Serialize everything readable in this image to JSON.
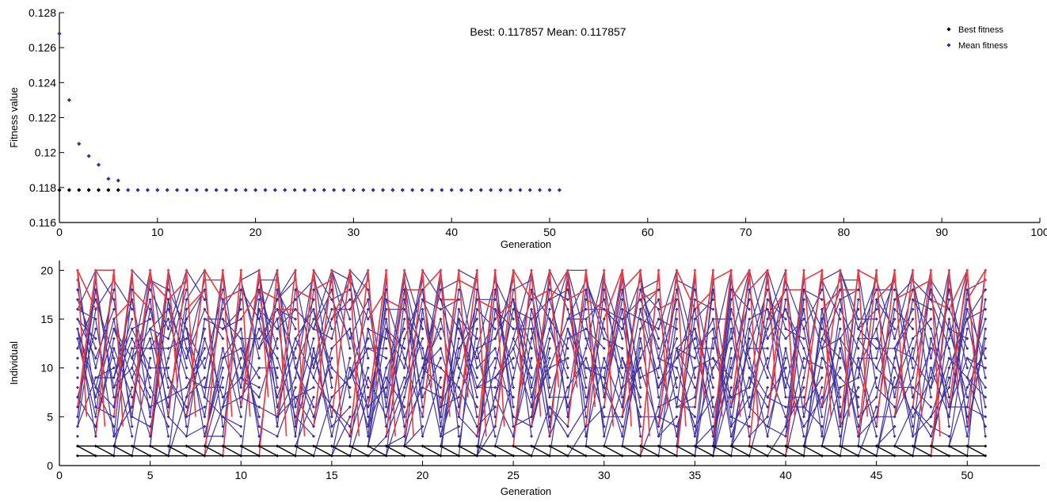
{
  "chart_data": [
    {
      "type": "scatter",
      "title": "Best: 0.117857 Mean: 0.117857",
      "xlabel": "Generation",
      "ylabel": "Fitness value",
      "xlim": [
        0,
        100
      ],
      "ylim": [
        0.116,
        0.128
      ],
      "xticks": [
        0,
        10,
        20,
        30,
        40,
        50,
        60,
        70,
        80,
        90,
        100
      ],
      "yticks": [
        0.116,
        0.118,
        0.12,
        0.122,
        0.124,
        0.126,
        0.128
      ],
      "ytick_labels": [
        "0.116",
        "0.118",
        "0.12",
        "0.122",
        "0.124",
        "0.126",
        "0.128"
      ],
      "legend_position": "top-right",
      "grid": false,
      "series": [
        {
          "name": "Best fitness",
          "color": "#000000",
          "x": [
            0,
            1,
            2,
            3,
            4,
            5,
            6
          ],
          "y": [
            0.117857,
            0.117857,
            0.117857,
            0.117857,
            0.117857,
            0.117857,
            0.117857
          ]
        },
        {
          "name": "Mean fitness",
          "color": "#3a2a9a",
          "x": [
            0,
            1,
            2,
            3,
            4,
            5,
            6,
            7,
            8,
            9,
            10,
            11,
            12,
            13,
            14,
            15,
            16,
            17,
            18,
            19,
            20,
            21,
            22,
            23,
            24,
            25,
            26,
            27,
            28,
            29,
            30,
            31,
            32,
            33,
            34,
            35,
            36,
            37,
            38,
            39,
            40,
            41,
            42,
            43,
            44,
            45,
            46,
            47,
            48,
            49,
            50,
            51
          ],
          "y": [
            0.1268,
            0.123,
            0.1205,
            0.1198,
            0.1193,
            0.1185,
            0.1184,
            0.117857,
            0.117857,
            0.117857,
            0.117857,
            0.117857,
            0.117857,
            0.117857,
            0.117857,
            0.117857,
            0.117857,
            0.117857,
            0.117857,
            0.117857,
            0.117857,
            0.117857,
            0.117857,
            0.117857,
            0.117857,
            0.117857,
            0.117857,
            0.117857,
            0.117857,
            0.117857,
            0.117857,
            0.117857,
            0.117857,
            0.117857,
            0.117857,
            0.117857,
            0.117857,
            0.117857,
            0.117857,
            0.117857,
            0.117857,
            0.117857,
            0.117857,
            0.117857,
            0.117857,
            0.117857,
            0.117857,
            0.117857,
            0.117857,
            0.117857,
            0.117857,
            0.117857
          ]
        }
      ]
    },
    {
      "type": "line",
      "title": "",
      "xlabel": "Generation",
      "ylabel": "Individual",
      "xlim": [
        0,
        54
      ],
      "ylim": [
        0,
        21
      ],
      "xticks": [
        0,
        5,
        10,
        15,
        20,
        25,
        30,
        35,
        40,
        45,
        50
      ],
      "yticks": [
        0,
        5,
        10,
        15,
        20
      ],
      "generations": [
        1,
        51
      ],
      "population_size": 20,
      "grid": false,
      "colors": {
        "genealogy": "#3a2a9a",
        "elite": "#e8393f",
        "best": "#000000"
      }
    }
  ]
}
